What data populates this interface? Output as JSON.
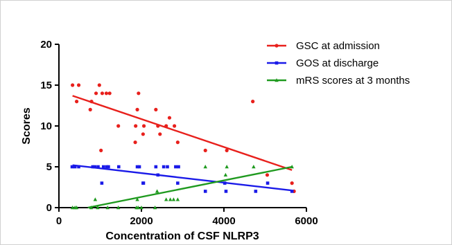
{
  "chart_data": {
    "type": "scatter",
    "xlabel": "Concentration of CSF NLRP3",
    "ylabel": "Scores",
    "xlim": [
      0,
      6000
    ],
    "ylim": [
      0,
      20
    ],
    "x_ticks": [
      "0",
      "2000",
      "4000",
      "6000"
    ],
    "y_ticks": [
      "0",
      "5",
      "10",
      "15",
      "20"
    ],
    "grid": false,
    "legend_position": "top-right",
    "series": [
      {
        "name": "GSC at admission",
        "color": "#e8201c",
        "marker": "circle",
        "points": [
          [
            330,
            15
          ],
          [
            430,
            13
          ],
          [
            480,
            15
          ],
          [
            760,
            12
          ],
          [
            790,
            13
          ],
          [
            900,
            14
          ],
          [
            980,
            15
          ],
          [
            1020,
            7
          ],
          [
            1050,
            14
          ],
          [
            1150,
            14
          ],
          [
            1230,
            14
          ],
          [
            1440,
            10
          ],
          [
            1850,
            8
          ],
          [
            1860,
            10
          ],
          [
            1900,
            12
          ],
          [
            1930,
            14
          ],
          [
            2040,
            9
          ],
          [
            2060,
            10
          ],
          [
            2350,
            12
          ],
          [
            2400,
            10
          ],
          [
            2450,
            9
          ],
          [
            2600,
            10
          ],
          [
            2680,
            11
          ],
          [
            2800,
            10
          ],
          [
            2880,
            8
          ],
          [
            3550,
            7
          ],
          [
            4070,
            7
          ],
          [
            4700,
            13
          ],
          [
            5050,
            4
          ],
          [
            5650,
            3
          ],
          [
            5700,
            2
          ]
        ],
        "fit": [
          [
            330,
            13.7
          ],
          [
            5650,
            4.6
          ]
        ]
      },
      {
        "name": "GOS at discharge",
        "color": "#1a1ae8",
        "marker": "square",
        "points": [
          [
            320,
            5
          ],
          [
            390,
            5
          ],
          [
            480,
            5
          ],
          [
            820,
            5
          ],
          [
            870,
            5
          ],
          [
            950,
            5
          ],
          [
            1040,
            3
          ],
          [
            1080,
            5
          ],
          [
            1160,
            5
          ],
          [
            1200,
            5
          ],
          [
            1450,
            5
          ],
          [
            1900,
            5
          ],
          [
            1950,
            5
          ],
          [
            2040,
            3
          ],
          [
            2050,
            3
          ],
          [
            2350,
            5
          ],
          [
            2400,
            4
          ],
          [
            2540,
            5
          ],
          [
            2630,
            5
          ],
          [
            2830,
            5
          ],
          [
            2880,
            3
          ],
          [
            2900,
            5
          ],
          [
            3550,
            2
          ],
          [
            4020,
            3
          ],
          [
            4050,
            2
          ],
          [
            4770,
            2
          ],
          [
            5060,
            3
          ],
          [
            5650,
            2
          ]
        ],
        "fit": [
          [
            330,
            5.2
          ],
          [
            5650,
            2.1
          ]
        ]
      },
      {
        "name": "mRS scores at 3 months",
        "color": "#1f9a1f",
        "marker": "triangle",
        "points": [
          [
            330,
            0
          ],
          [
            390,
            0
          ],
          [
            430,
            0
          ],
          [
            780,
            0
          ],
          [
            880,
            1
          ],
          [
            940,
            0
          ],
          [
            1180,
            0
          ],
          [
            1440,
            0
          ],
          [
            1880,
            0
          ],
          [
            1900,
            1
          ],
          [
            1920,
            0
          ],
          [
            2000,
            0
          ],
          [
            2330,
            0
          ],
          [
            2380,
            2
          ],
          [
            2600,
            1
          ],
          [
            2700,
            1
          ],
          [
            2780,
            1
          ],
          [
            2880,
            1
          ],
          [
            3550,
            5
          ],
          [
            4040,
            4
          ],
          [
            4070,
            5
          ],
          [
            4720,
            5
          ],
          [
            5650,
            5
          ]
        ],
        "fit": [
          [
            700,
            0
          ],
          [
            5650,
            5.0
          ]
        ]
      }
    ]
  }
}
